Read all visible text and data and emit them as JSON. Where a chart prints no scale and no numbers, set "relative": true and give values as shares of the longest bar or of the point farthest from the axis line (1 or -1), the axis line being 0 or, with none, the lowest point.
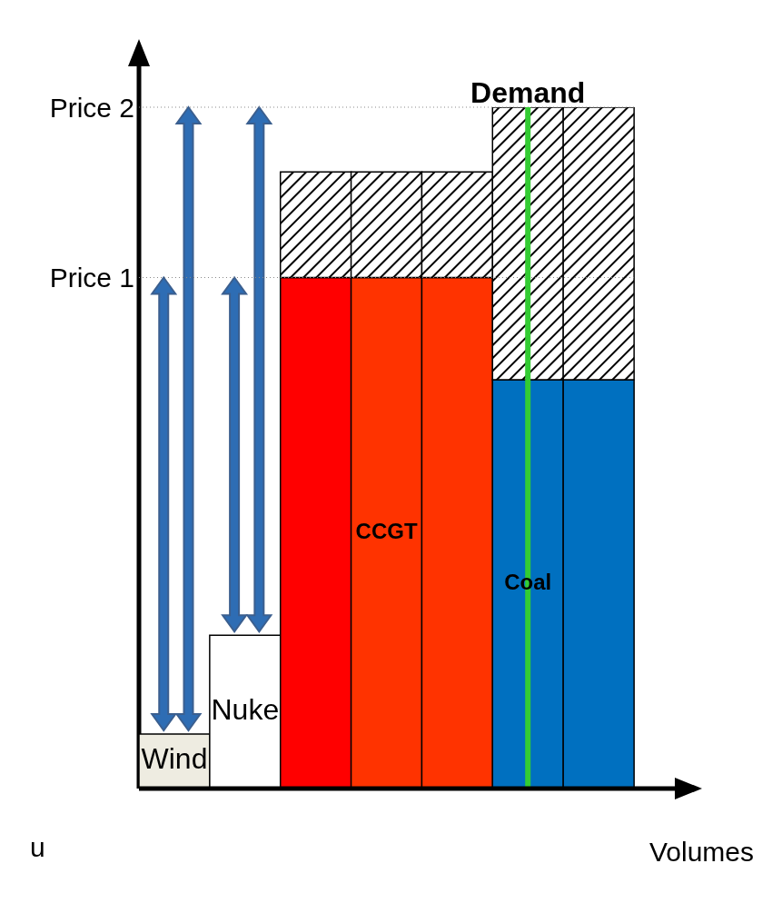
{
  "chart_data": {
    "type": "bar",
    "stacked": true,
    "relative": true,
    "xlabel": "Volumes",
    "tick_labels": false,
    "categories": [
      "Wind",
      "Nuke",
      null,
      "CCGT",
      null,
      "Coal",
      null
    ],
    "series": [
      {
        "values": [
          0.08,
          0.225,
          0.75,
          0.75,
          0.75,
          0.6,
          0.6
        ],
        "colors": [
          "#eeece1",
          "#ffffff",
          "#ff0000",
          "#ff3300",
          "#ff3300",
          "#0070c0",
          "#0070c0"
        ]
      },
      {
        "values": [
          null,
          null,
          0.155,
          0.155,
          0.155,
          0.4,
          0.4
        ],
        "color": "#000000"
      }
    ],
    "ref_lines": [
      {
        "axis": "y",
        "value": 0.75,
        "label": "Price 1",
        "color": "#888888",
        "line_style": "dotted"
      },
      {
        "axis": "y",
        "value": 1,
        "label": "Price 2",
        "color": "#888888",
        "line_style": "dotted"
      },
      {
        "axis": "x",
        "value": "Coal",
        "label": "Demand",
        "color": "#33cc33",
        "line_style": "solid"
      }
    ],
    "annotations": [
      "u"
    ]
  }
}
